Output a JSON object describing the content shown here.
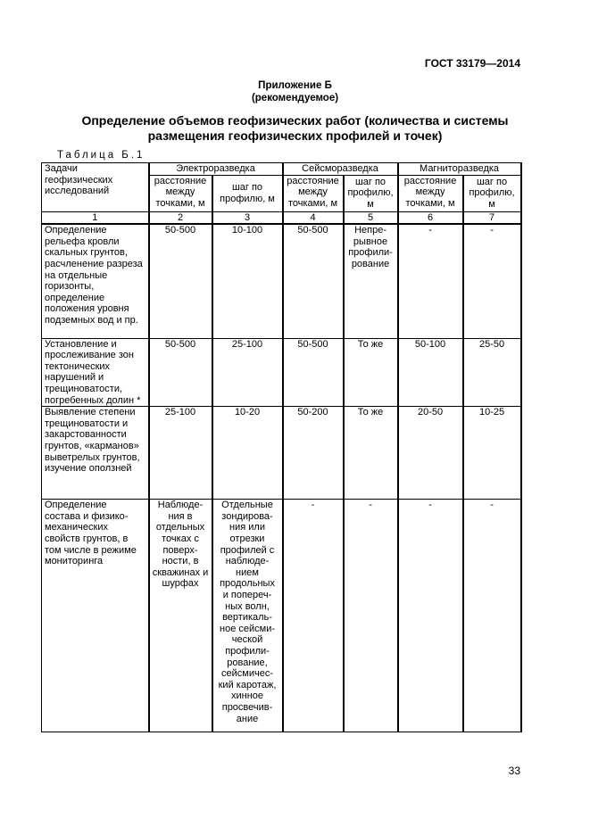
{
  "header": {
    "standard": "ГОСТ 33179—2014",
    "annex": "Приложение Б",
    "annex_note": "(рекомендуемое)",
    "title": "Определение объемов геофизических работ (количества и системы размещения геофизических профилей и точек)",
    "table_label": "Таблица Б.1"
  },
  "table": {
    "task_header": "Задачи геофизических исследований",
    "groups": [
      "Электроразведка",
      "Сейсморазведка",
      "Магниторазведка"
    ],
    "subheaders": [
      "расстояние между точками, м",
      "шаг по профилю, м",
      "расстояние между точками, м",
      "шаг по профилю, м",
      "расстояние между точками, м",
      "шаг по профилю, м"
    ],
    "numbers": [
      "1",
      "2",
      "3",
      "4",
      "5",
      "6",
      "7"
    ],
    "rows": [
      [
        "Определение рельефа кровли скальных грунтов, расчленение разреза на отдельные горизонты, определение положения уровня подземных вод и пр.",
        "50-500",
        "10-100",
        "50-500",
        "Непре-рывное профили-рование",
        "-",
        "-"
      ],
      [
        "Установление и прослеживание зон тектонических нарушений и трещиноватости, погребенных долин *",
        "50-500",
        "25-100",
        "50-500",
        "То же",
        "50-100",
        "25-50"
      ],
      [
        "Выявление степени трещиноватости и закарстованности грунтов, «карманов» выветрелых грунтов, изучение оползней",
        "25-100",
        "10-20",
        "50-200",
        "То же",
        "20-50",
        "10-25"
      ],
      [
        "Определение состава и физико-механических свойств грунтов, в том числе в режиме мониторинга",
        "Наблюде-ния в отдельных точках с поверх-ности, в скважинах и шурфах",
        "Отдельные зондирова-ния или отрезки профилей с наблюде-нием продольных и попереч-ных волн, вертикаль-ное сейсми-ческой профили-рование, сейсмичес-кий каротаж, хинное просвечив-ание",
        "-",
        "-",
        "-",
        "-"
      ]
    ]
  },
  "footer": {
    "page_number": "33"
  }
}
